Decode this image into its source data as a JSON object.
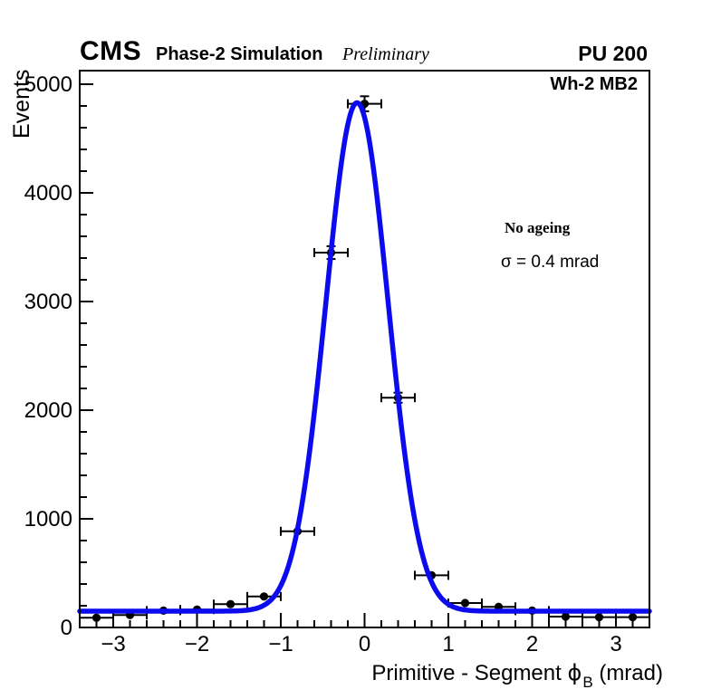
{
  "header": {
    "experiment": "CMS",
    "simulation_label": "Phase-2 Simulation",
    "preliminary_label": "Preliminary",
    "pileup_label": "PU 200"
  },
  "plot": {
    "region_label": "Wh-2 MB2",
    "annotation_line1": "No ageing",
    "annotation_line2": "σ = 0.4 mrad",
    "ylabel": "Events",
    "xlabel": {
      "prefix": "Primitive - Segment ",
      "symbol": "ϕ",
      "subscript": "B",
      "suffix": " (mrad)"
    }
  },
  "chart_data": {
    "type": "scatter",
    "title": "",
    "xlabel": "Primitive - Segment phi_B (mrad)",
    "ylabel": "Events",
    "xlim": [
      -3.4,
      3.4
    ],
    "ylim": [
      0,
      5125
    ],
    "grid": false,
    "x_major_ticks": [
      -3,
      -2,
      -1,
      0,
      1,
      2,
      3
    ],
    "x_tick_labels": [
      "−3",
      "−2",
      "−1",
      "0",
      "1",
      "2",
      "3"
    ],
    "x_minor_step": 0.2,
    "y_major_ticks": [
      0,
      1000,
      2000,
      3000,
      4000,
      5000
    ],
    "y_tick_labels": [
      "0",
      "1000",
      "2000",
      "3000",
      "4000",
      "5000"
    ],
    "y_minor_step": 200,
    "points": [
      {
        "x": -3.2,
        "y": 90,
        "xerr": 0.2,
        "yerr": 9
      },
      {
        "x": -2.8,
        "y": 115,
        "xerr": 0.2,
        "yerr": 11
      },
      {
        "x": -2.4,
        "y": 155,
        "xerr": 0.2,
        "yerr": 12
      },
      {
        "x": -2.0,
        "y": 165,
        "xerr": 0.2,
        "yerr": 13
      },
      {
        "x": -1.6,
        "y": 215,
        "xerr": 0.2,
        "yerr": 15
      },
      {
        "x": -1.2,
        "y": 285,
        "xerr": 0.2,
        "yerr": 17
      },
      {
        "x": -0.8,
        "y": 885,
        "xerr": 0.2,
        "yerr": 30
      },
      {
        "x": -0.4,
        "y": 3450,
        "xerr": 0.2,
        "yerr": 59
      },
      {
        "x": 0.0,
        "y": 4820,
        "xerr": 0.2,
        "yerr": 69
      },
      {
        "x": 0.4,
        "y": 2115,
        "xerr": 0.2,
        "yerr": 46
      },
      {
        "x": 0.8,
        "y": 480,
        "xerr": 0.2,
        "yerr": 22
      },
      {
        "x": 1.2,
        "y": 225,
        "xerr": 0.2,
        "yerr": 15
      },
      {
        "x": 1.6,
        "y": 190,
        "xerr": 0.2,
        "yerr": 14
      },
      {
        "x": 2.0,
        "y": 155,
        "xerr": 0.2,
        "yerr": 12
      },
      {
        "x": 2.4,
        "y": 100,
        "xerr": 0.2,
        "yerr": 10
      },
      {
        "x": 2.8,
        "y": 95,
        "xerr": 0.2,
        "yerr": 10
      },
      {
        "x": 3.2,
        "y": 95,
        "xerr": 0.2,
        "yerr": 10
      }
    ],
    "fit": {
      "model": "gaussian_plus_constant",
      "amplitude": 4680,
      "mean": -0.09,
      "sigma": 0.372,
      "background": 150,
      "sigma_label": "0.4 mrad"
    },
    "colors": {
      "fit_line": "#0b0bee",
      "marker": "#000000",
      "frame": "#000000",
      "background": "#ffffff"
    }
  }
}
